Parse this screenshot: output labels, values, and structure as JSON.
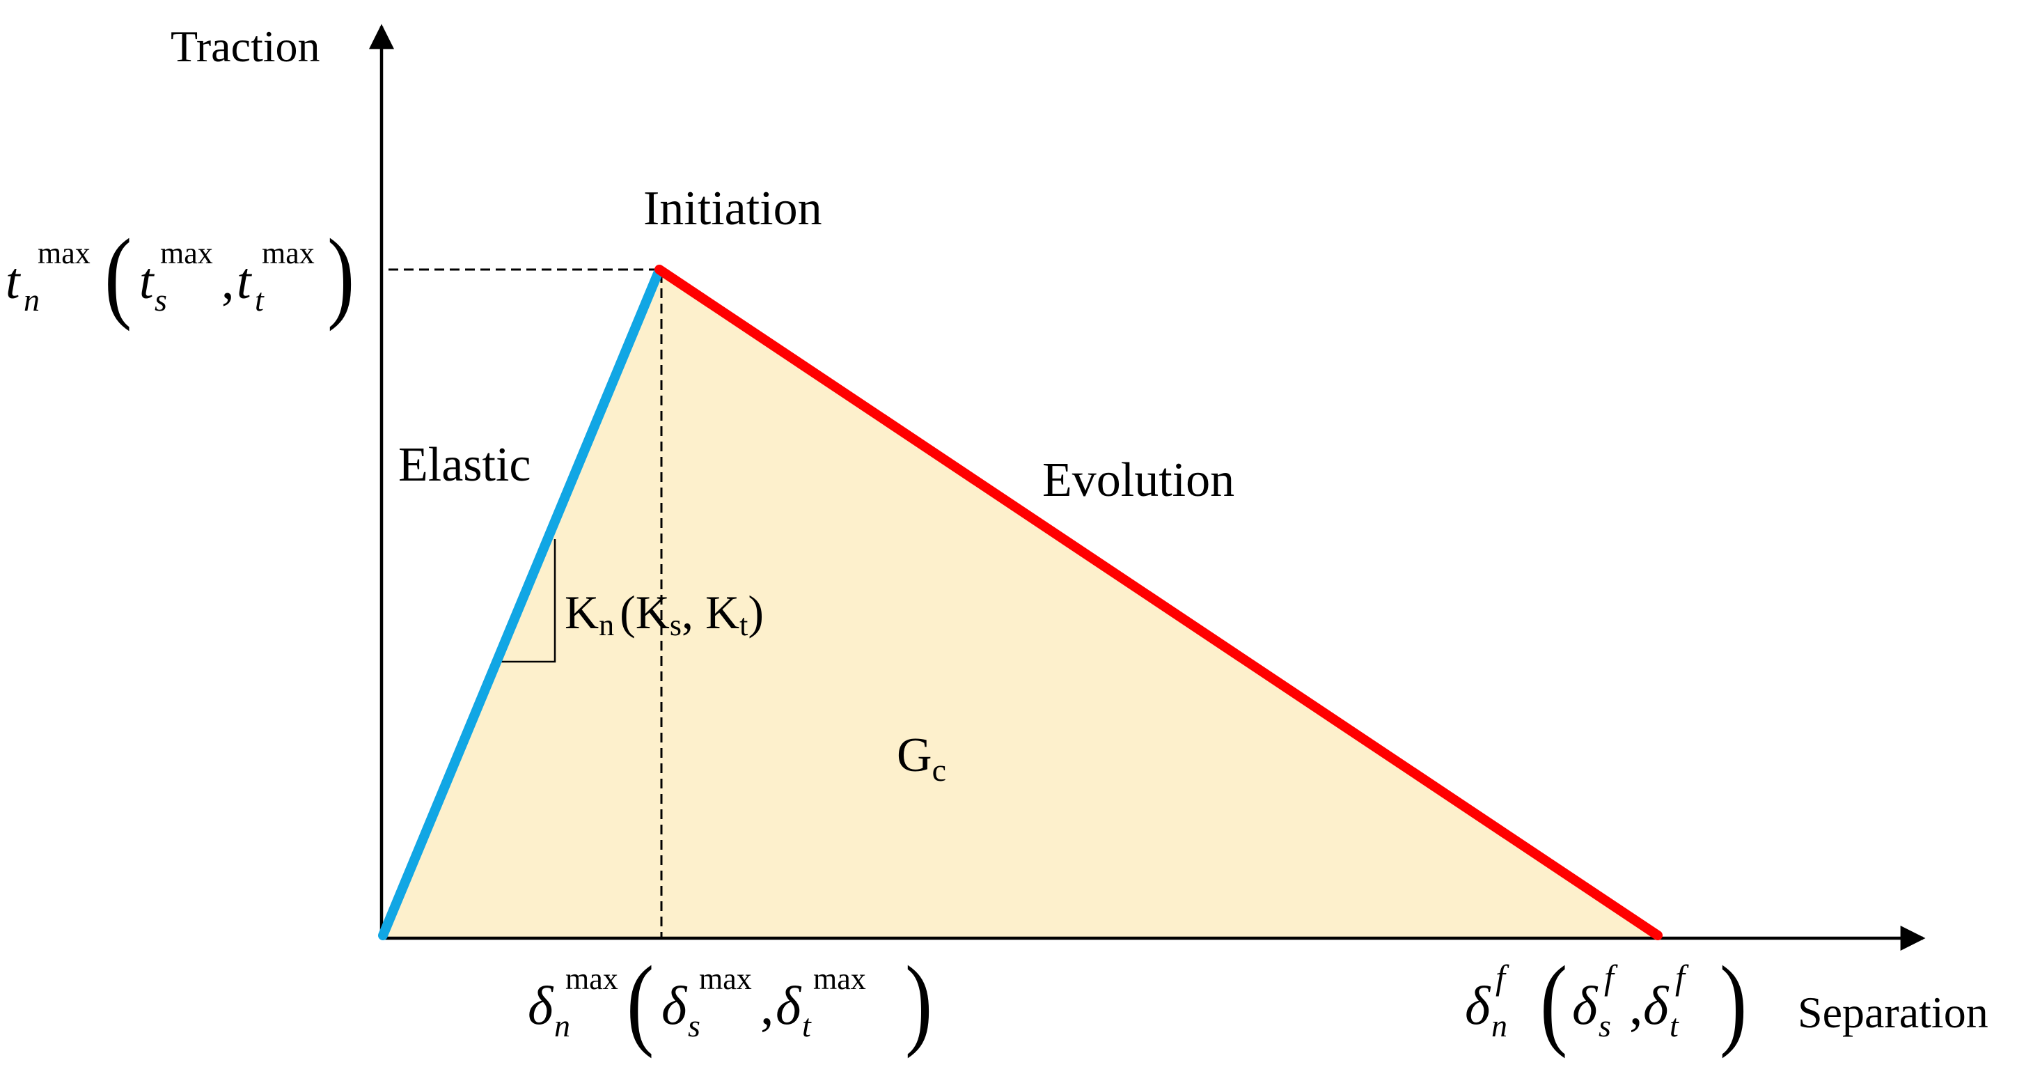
{
  "axes": {
    "y_label": "Traction",
    "x_label": "Separation"
  },
  "labels": {
    "initiation": "Initiation",
    "elastic": "Elastic",
    "evolution": "Evolution",
    "stiffness": {
      "k": "K",
      "n": "n",
      "s": "s",
      "t": "t",
      "open": "(",
      "comma": ", ",
      "close": ")"
    },
    "energy": {
      "g": "G",
      "c": "c"
    }
  },
  "y_tick": {
    "t": "t",
    "n": "n",
    "s": "s",
    "tt": "t",
    "max": "max",
    "open": "(",
    "comma": ",",
    "close": ")"
  },
  "x_tick_max": {
    "delta": "δ",
    "n": "n",
    "s": "s",
    "t": "t",
    "max": "max",
    "open": "(",
    "comma": ",",
    "close": ")"
  },
  "x_tick_f": {
    "delta": "δ",
    "n": "n",
    "s": "s",
    "t": "t",
    "f": "f",
    "open": "(",
    "comma": ",",
    "close": ")"
  },
  "colors": {
    "elastic": "#11a6e4",
    "evolution": "#ff0000",
    "fill": "#fdf0cc",
    "axis": "#000000"
  }
}
